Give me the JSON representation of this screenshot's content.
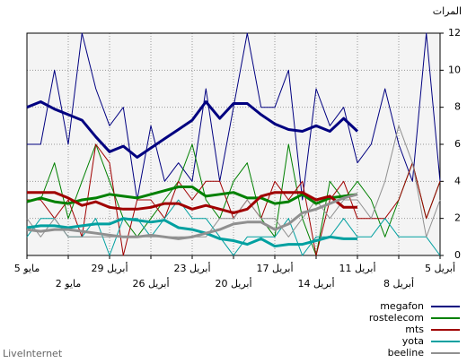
{
  "chart_data": {
    "type": "line",
    "y_label": "المرات",
    "footer": "LiveInternet",
    "categories": [
      "5 مايو",
      null,
      null,
      "2 مايو",
      null,
      null,
      "29 أبريل",
      null,
      null,
      "26 أبريل",
      null,
      null,
      "23 أبريل",
      null,
      null,
      "20 أبريل",
      null,
      null,
      "17 أبريل",
      null,
      null,
      "14 أبريل",
      null,
      null,
      "11 أبريل",
      null,
      null,
      "8 أبريل",
      null,
      null,
      "5 أبريل"
    ],
    "ylim": [
      0,
      12
    ],
    "yticks": [
      0,
      2,
      4,
      6,
      8,
      10,
      12
    ],
    "grid": true,
    "series": [
      {
        "name": "megafon",
        "color": "#000080",
        "values": [
          6,
          6,
          10,
          6,
          12,
          9,
          7,
          8,
          3,
          7,
          4,
          5,
          4,
          9,
          4,
          8,
          12,
          8,
          8,
          10,
          3,
          9,
          7,
          8,
          5,
          6,
          9,
          6,
          4,
          12,
          4
        ],
        "trend": [
          8,
          8.3,
          7.9,
          7.6,
          7.3,
          6.4,
          5.6,
          5.9,
          5.3,
          5.8,
          6.3,
          6.8,
          7.3,
          8.3,
          7.4,
          8.2,
          8.2,
          7.6,
          7.1,
          6.8,
          6.7,
          7.0,
          6.7,
          7.4,
          6.7,
          null,
          null,
          null,
          null,
          null,
          null
        ]
      },
      {
        "name": "rostelecom",
        "color": "#008000",
        "values": [
          3,
          3,
          5,
          2,
          4,
          6,
          4,
          2,
          1,
          2,
          3,
          4,
          6,
          3,
          2,
          4,
          5,
          2,
          1,
          6,
          2,
          0,
          4,
          3,
          4,
          3,
          1,
          3,
          5,
          2,
          4
        ],
        "trend": [
          2.9,
          3.1,
          2.9,
          2.8,
          3.0,
          3.1,
          3.3,
          3.2,
          3.1,
          3.3,
          3.5,
          3.7,
          3.7,
          3.2,
          3.3,
          3.4,
          3.1,
          3.1,
          2.8,
          2.9,
          3.3,
          2.8,
          3.1,
          3.2,
          3.3,
          null,
          null,
          null,
          null,
          null,
          null
        ]
      },
      {
        "name": "mts",
        "color": "#a00000",
        "values": [
          3,
          3,
          2,
          3,
          1,
          6,
          5,
          0,
          3,
          3,
          2,
          4,
          3,
          4,
          4,
          2,
          3,
          2,
          4,
          3,
          4,
          0,
          3,
          4,
          2,
          2,
          2,
          3,
          5,
          2,
          4
        ],
        "trend": [
          3.4,
          3.4,
          3.4,
          3.1,
          2.7,
          2.9,
          2.6,
          2.5,
          2.5,
          2.6,
          2.8,
          2.8,
          2.5,
          2.7,
          2.5,
          2.3,
          2.5,
          3.2,
          3.4,
          3.4,
          3.4,
          3.0,
          3.2,
          2.6,
          2.6,
          null,
          null,
          null,
          null,
          null,
          null
        ]
      },
      {
        "name": "yota",
        "color": "#00a0a0",
        "values": [
          1,
          2,
          2,
          1,
          1,
          2,
          0,
          2,
          2,
          1,
          2,
          3,
          2,
          2,
          1,
          0,
          1,
          1,
          1,
          2,
          0,
          1,
          1,
          2,
          1,
          1,
          2,
          1,
          1,
          1,
          0
        ],
        "trend": [
          1.5,
          1.6,
          1.6,
          1.5,
          1.6,
          1.7,
          1.7,
          2.0,
          1.9,
          1.8,
          1.9,
          1.5,
          1.4,
          1.2,
          0.9,
          0.8,
          0.6,
          0.9,
          0.5,
          0.6,
          0.6,
          0.8,
          1.0,
          0.9,
          0.9,
          null,
          null,
          null,
          null,
          null,
          null
        ]
      },
      {
        "name": "beeline",
        "color": "#909090",
        "values": [
          2,
          1,
          2,
          1,
          1,
          1,
          1,
          1,
          1,
          1,
          1,
          1,
          1,
          1,
          2,
          2,
          3,
          2,
          2,
          1,
          2,
          3,
          2,
          3,
          3,
          2,
          4,
          7,
          5,
          1,
          3
        ],
        "trend": [
          1.4,
          1.3,
          1.4,
          1.4,
          1.3,
          1.2,
          1.1,
          1.0,
          1.0,
          1.1,
          1.0,
          0.9,
          1.0,
          1.2,
          1.4,
          1.7,
          1.8,
          1.8,
          1.4,
          1.7,
          2.3,
          2.5,
          2.8,
          3.1,
          3.3,
          null,
          null,
          null,
          null,
          null,
          null
        ]
      }
    ]
  }
}
